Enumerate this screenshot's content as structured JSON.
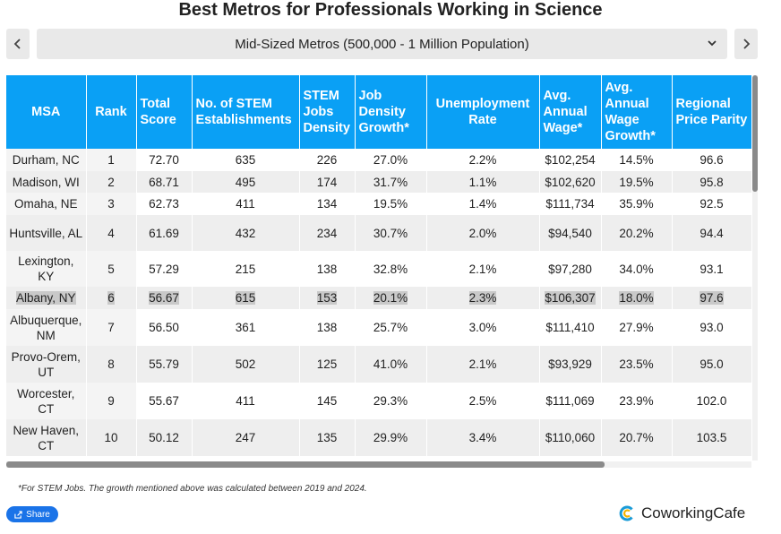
{
  "title": "Best Metros for Professionals Working in Science",
  "selector": {
    "label": "Mid-Sized Metros (500,000 - 1 Million Population)"
  },
  "headers": [
    "MSA",
    "Rank",
    "Total Score",
    "No. of STEM Establishments",
    "STEM Jobs Density",
    "Job Density Growth*",
    "Unemployment Rate",
    "Avg. Annual Wage*",
    "Avg. Annual Wage Growth*",
    "Regional Price Parity"
  ],
  "rows": [
    [
      "Durham, NC",
      "1",
      "72.70",
      "635",
      "226",
      "27.0%",
      "2.2%",
      "$102,254",
      "14.5%",
      "96.6"
    ],
    [
      "Madison, WI",
      "2",
      "68.71",
      "495",
      "174",
      "31.7%",
      "1.1%",
      "$102,620",
      "19.5%",
      "95.8"
    ],
    [
      "Omaha, NE",
      "3",
      "62.73",
      "411",
      "134",
      "19.5%",
      "1.4%",
      "$111,734",
      "35.9%",
      "92.5"
    ],
    [
      "Huntsville, AL",
      "4",
      "61.69",
      "432",
      "234",
      "30.7%",
      "2.0%",
      "$94,540",
      "20.2%",
      "94.4"
    ],
    [
      "Lexington, KY",
      "5",
      "57.29",
      "215",
      "138",
      "32.8%",
      "2.1%",
      "$97,280",
      "34.0%",
      "93.1"
    ],
    [
      "Albany, NY",
      "6",
      "56.67",
      "615",
      "153",
      "20.1%",
      "2.3%",
      "$106,307",
      "18.0%",
      "97.6"
    ],
    [
      "Albuquerque, NM",
      "7",
      "56.50",
      "361",
      "138",
      "25.7%",
      "3.0%",
      "$111,410",
      "27.9%",
      "93.0"
    ],
    [
      "Provo-Orem, UT",
      "8",
      "55.79",
      "502",
      "125",
      "41.0%",
      "2.1%",
      "$93,929",
      "23.5%",
      "95.0"
    ],
    [
      "Worcester, CT",
      "9",
      "55.67",
      "411",
      "145",
      "29.3%",
      "2.5%",
      "$111,069",
      "23.9%",
      "102.0"
    ],
    [
      "New Haven, CT",
      "10",
      "50.12",
      "247",
      "135",
      "29.9%",
      "3.4%",
      "$110,060",
      "20.7%",
      "103.5"
    ]
  ],
  "highlighted_row": 5,
  "footnote": "*For STEM Jobs. The growth mentioned above was calculated between 2019 and 2024.",
  "share_label": "Share",
  "brand": "CoworkingCafe",
  "colors": {
    "header_bg": "#0aa0f5",
    "accent": "#1a73e8",
    "highlight": "#c9c9c9"
  },
  "icons": {
    "prev": "chevron-left-icon",
    "next": "chevron-right-icon",
    "dropdown": "chevron-down-icon",
    "share": "share-icon",
    "logo": "coworkingcafe-logo-icon"
  },
  "chart_data": {
    "type": "table",
    "title": "Best Metros for Professionals Working in Science",
    "subtitle": "Mid-Sized Metros (500,000 - 1 Million Population)",
    "columns": [
      "MSA",
      "Rank",
      "Total Score",
      "No. of STEM Establishments",
      "STEM Jobs Density",
      "Job Density Growth*",
      "Unemployment Rate",
      "Avg. Annual Wage*",
      "Avg. Annual Wage Growth*",
      "Regional Price Parity"
    ]
  }
}
